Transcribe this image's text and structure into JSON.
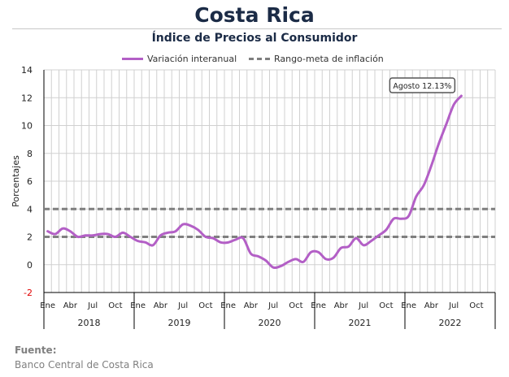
{
  "header": {
    "title": "Costa Rica",
    "subtitle": "Índice de Precios al Consumidor"
  },
  "legend": {
    "series_label": "Variación interanual",
    "target_label": "Rango-meta de inflación"
  },
  "source": {
    "title": "Fuente:",
    "text": "Banco Central de Costa Rica"
  },
  "colors": {
    "series": "#b35fc6",
    "target": "#7f7f7f",
    "grid": "#d0d0d0",
    "title": "#1b2b46",
    "negative_tick": "#e00000"
  },
  "chart_data": {
    "type": "line",
    "ylabel": "Porcentajes",
    "ylim": [
      -2,
      14
    ],
    "yticks": [
      -2,
      0,
      2,
      4,
      6,
      8,
      10,
      12,
      14
    ],
    "grid": true,
    "legend_position": "top",
    "month_tick_labels": [
      "Ene",
      "Abr",
      "Jul",
      "Oct"
    ],
    "years": [
      "2018",
      "2019",
      "2020",
      "2021",
      "2022"
    ],
    "annotation": "Agosto 12.13%",
    "target_band": [
      2,
      4
    ],
    "series": [
      {
        "name": "Variación interanual",
        "x": [
          "2018-01",
          "2018-02",
          "2018-03",
          "2018-04",
          "2018-05",
          "2018-06",
          "2018-07",
          "2018-08",
          "2018-09",
          "2018-10",
          "2018-11",
          "2018-12",
          "2019-01",
          "2019-02",
          "2019-03",
          "2019-04",
          "2019-05",
          "2019-06",
          "2019-07",
          "2019-08",
          "2019-09",
          "2019-10",
          "2019-11",
          "2019-12",
          "2020-01",
          "2020-02",
          "2020-03",
          "2020-04",
          "2020-05",
          "2020-06",
          "2020-07",
          "2020-08",
          "2020-09",
          "2020-10",
          "2020-11",
          "2020-12",
          "2021-01",
          "2021-02",
          "2021-03",
          "2021-04",
          "2021-05",
          "2021-06",
          "2021-07",
          "2021-08",
          "2021-09",
          "2021-10",
          "2021-11",
          "2021-12",
          "2022-01",
          "2022-02",
          "2022-03",
          "2022-04",
          "2022-05",
          "2022-06",
          "2022-07",
          "2022-08"
        ],
        "values": [
          2.4,
          2.2,
          2.6,
          2.4,
          2.0,
          2.1,
          2.1,
          2.2,
          2.2,
          2.0,
          2.3,
          2.0,
          1.7,
          1.6,
          1.4,
          2.1,
          2.3,
          2.4,
          2.9,
          2.8,
          2.5,
          2.0,
          1.9,
          1.6,
          1.6,
          1.8,
          1.9,
          0.8,
          0.6,
          0.3,
          -0.2,
          -0.1,
          0.2,
          0.4,
          0.2,
          0.9,
          0.9,
          0.4,
          0.5,
          1.2,
          1.3,
          1.9,
          1.4,
          1.7,
          2.1,
          2.5,
          3.3,
          3.3,
          3.5,
          4.9,
          5.7,
          7.1,
          8.7,
          10.1,
          11.5,
          12.13
        ]
      }
    ]
  }
}
